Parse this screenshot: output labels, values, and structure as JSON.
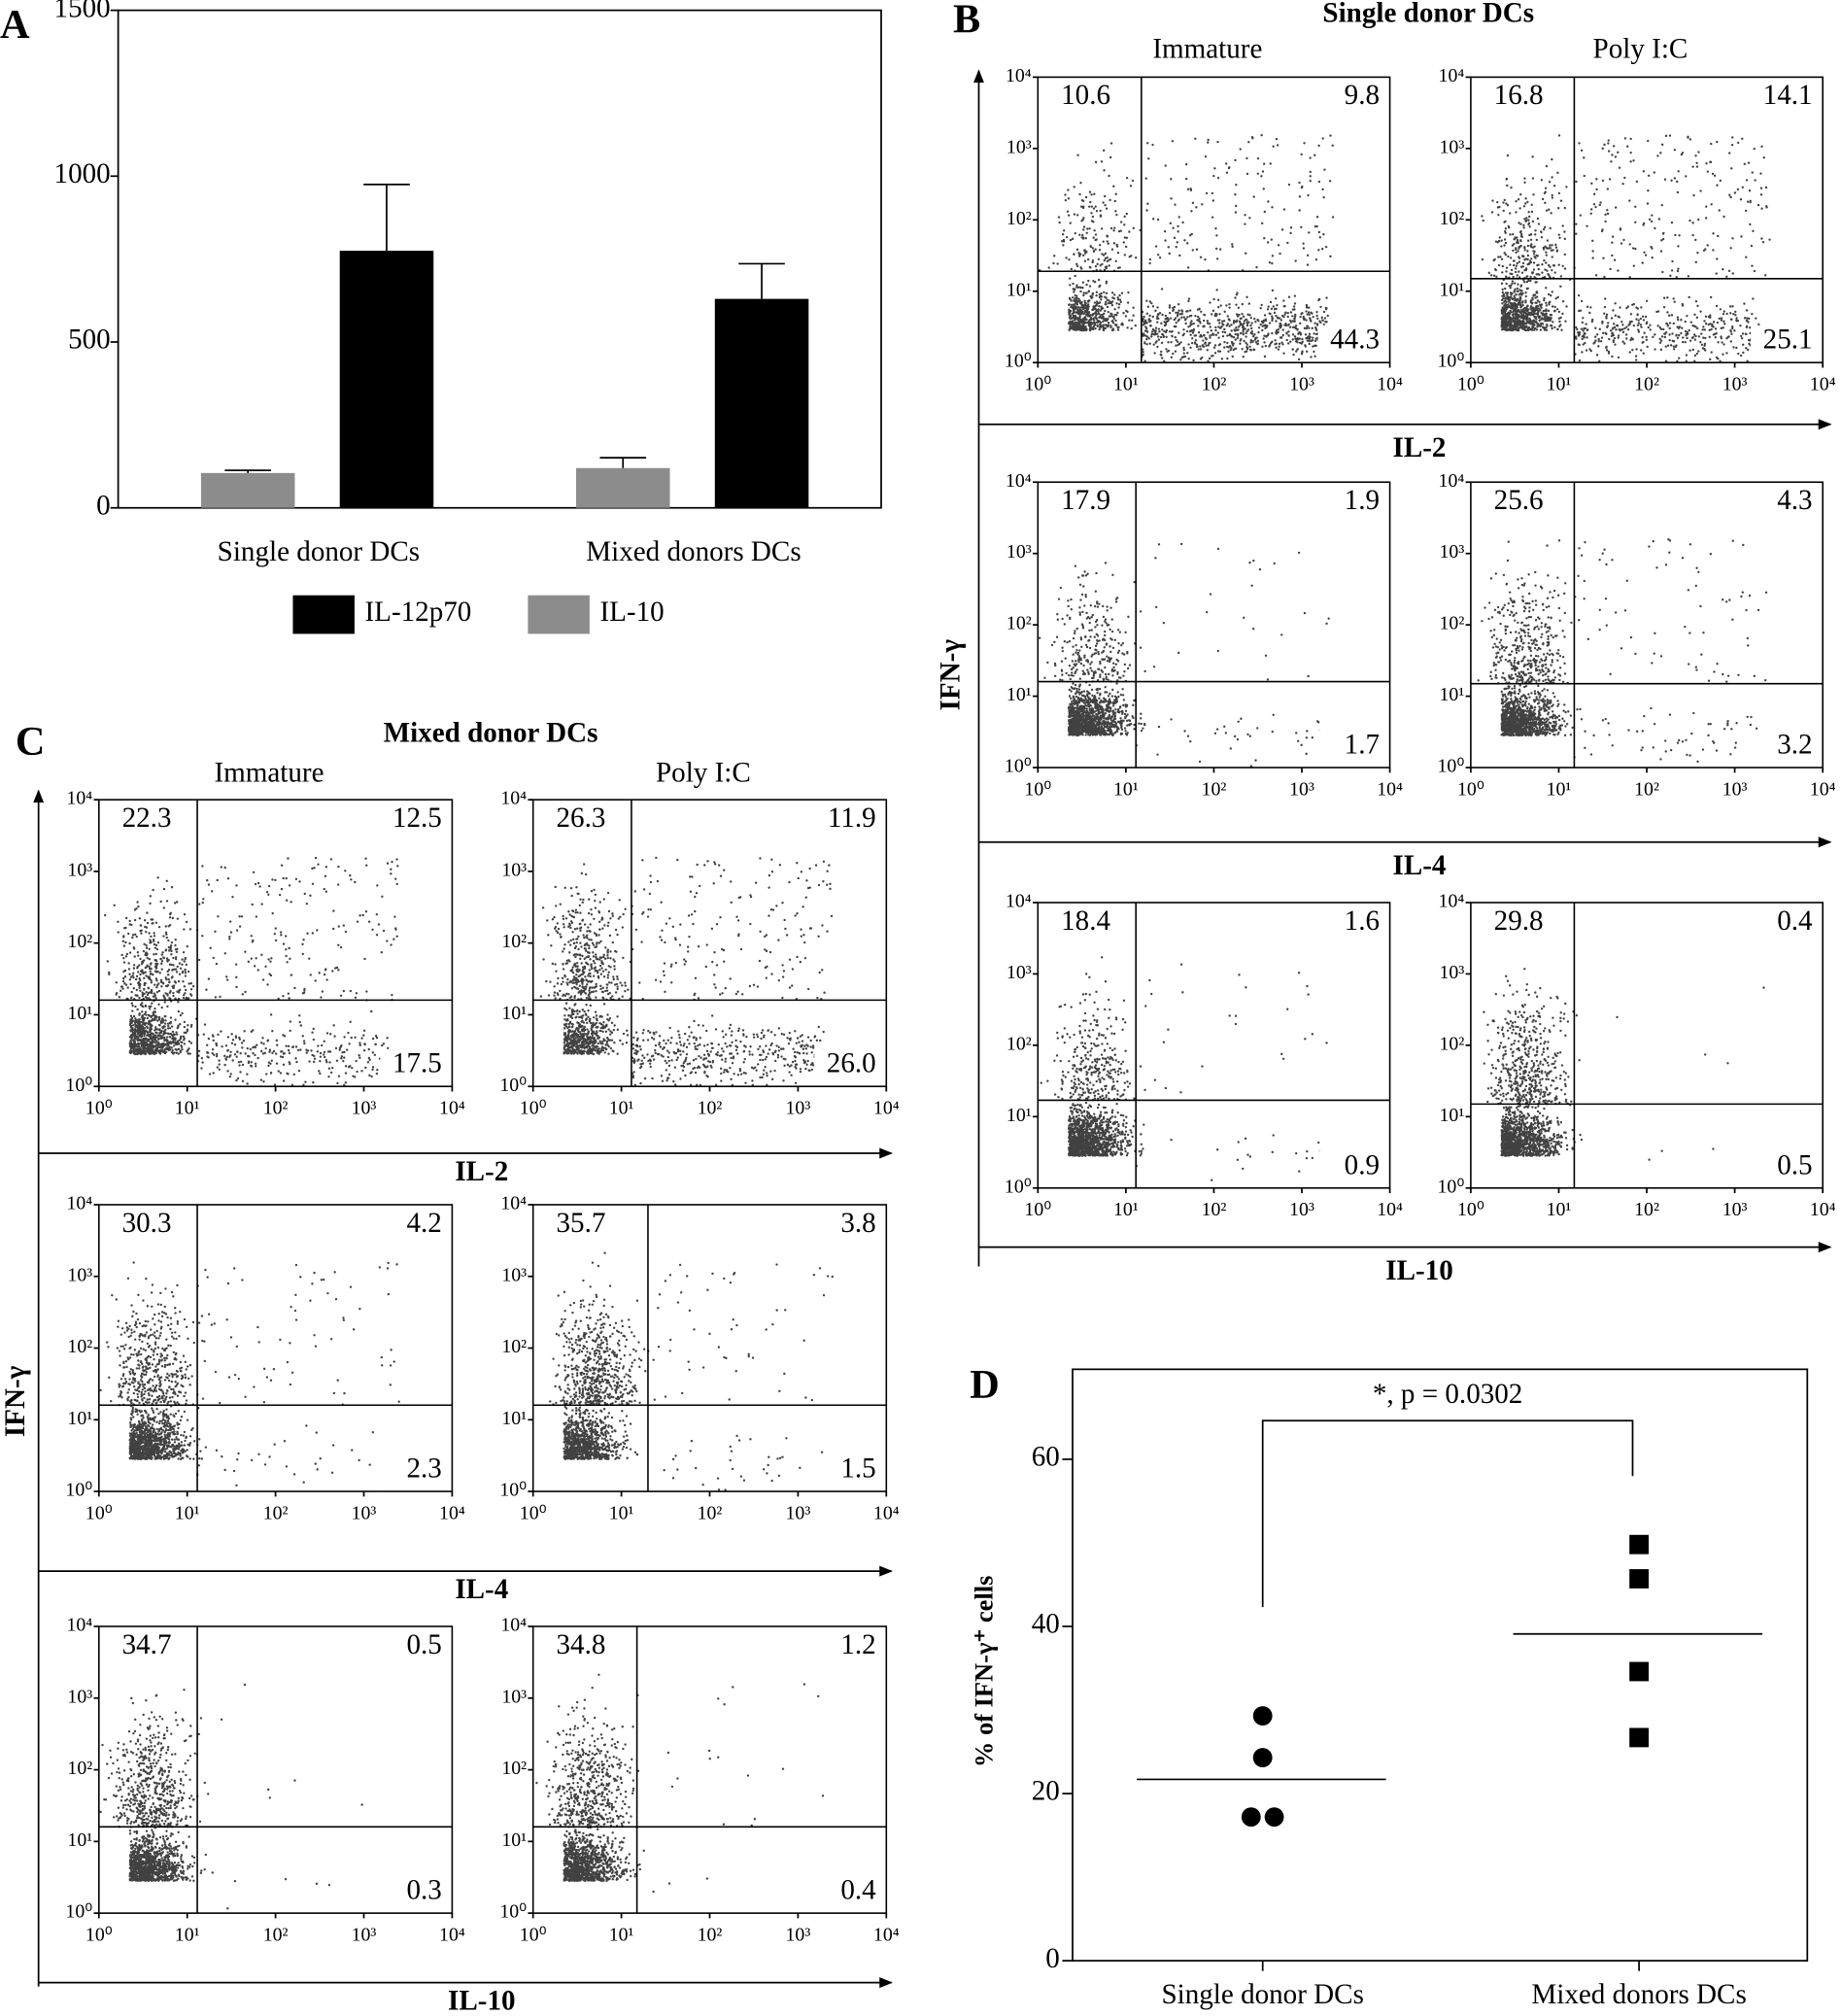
{
  "chart_data": [
    {
      "type": "bar",
      "panel_label": "A",
      "categories": [
        "Single donor DCs",
        "Mixed donors DCs"
      ],
      "series": [
        {
          "name": "IL-12p70",
          "color": "#000000",
          "values": [
            775,
            630
          ],
          "errors": [
            200,
            106
          ]
        },
        {
          "name": "IL-10",
          "color": "#8c8c8c",
          "values": [
            105,
            120
          ],
          "errors": [
            8,
            31
          ]
        }
      ],
      "ylim": [
        0,
        1500
      ],
      "yticks": [
        0,
        500,
        1000,
        1500
      ],
      "legend": "bottom"
    },
    {
      "type": "flow",
      "panel_label": "B",
      "title": "Single donor DCs",
      "columns": [
        "Immature",
        "Poly I:C"
      ],
      "y_label": "IFN-γ",
      "xlim": [
        1,
        10000
      ],
      "ylim": [
        1,
        10000
      ],
      "log_scale": true,
      "xticks": [
        {
          "value": 1,
          "label": "10⁰"
        },
        {
          "value": 10,
          "label": "10¹"
        },
        {
          "value": 100,
          "label": "10²"
        },
        {
          "value": 1000,
          "label": "10³"
        },
        {
          "value": 10000,
          "label": "10⁴"
        }
      ],
      "yticks": [
        {
          "value": 1,
          "label": "10⁰"
        },
        {
          "value": 10,
          "label": "10¹"
        },
        {
          "value": 100,
          "label": "10²"
        },
        {
          "value": 1000,
          "label": "10³"
        },
        {
          "value": 10000,
          "label": "10⁴"
        }
      ],
      "rows": [
        {
          "x_label": "IL-2",
          "plots": [
            {
              "values": [
                10.6,
                9.8,
                44.3
              ],
              "gate": [
                15,
                19
              ]
            },
            {
              "values": [
                16.8,
                14.1,
                25.1
              ],
              "gate": [
                15,
                15
              ]
            }
          ]
        },
        {
          "x_label": "IL-4",
          "plots": [
            {
              "values": [
                17.9,
                1.9,
                1.7
              ],
              "gate": [
                13,
                16
              ]
            },
            {
              "values": [
                25.6,
                4.3,
                3.2
              ],
              "gate": [
                15,
                15
              ]
            }
          ]
        },
        {
          "x_label": "IL-10",
          "plots": [
            {
              "values": [
                18.4,
                1.6,
                0.9
              ],
              "gate": [
                13,
                17
              ]
            },
            {
              "values": [
                29.8,
                0.4,
                0.5
              ],
              "gate": [
                15,
                15
              ]
            }
          ]
        }
      ]
    },
    {
      "type": "flow",
      "panel_label": "C",
      "title": "Mixed donor DCs",
      "columns": [
        "Immature",
        "Poly I:C"
      ],
      "y_label": "IFN-γ",
      "xlim": [
        1,
        10000
      ],
      "ylim": [
        1,
        10000
      ],
      "log_scale": true,
      "xticks": [
        {
          "value": 1,
          "label": "10⁰"
        },
        {
          "value": 10,
          "label": "10¹"
        },
        {
          "value": 100,
          "label": "10²"
        },
        {
          "value": 1000,
          "label": "10³"
        },
        {
          "value": 10000,
          "label": "10⁴"
        }
      ],
      "yticks": [
        {
          "value": 1,
          "label": "10⁰"
        },
        {
          "value": 10,
          "label": "10¹"
        },
        {
          "value": 100,
          "label": "10²"
        },
        {
          "value": 1000,
          "label": "10³"
        },
        {
          "value": 10000,
          "label": "10⁴"
        }
      ],
      "rows": [
        {
          "x_label": "IL-2",
          "plots": [
            {
              "values": [
                22.3,
                12.5,
                17.5
              ],
              "gate": [
                13,
                16
              ]
            },
            {
              "values": [
                26.3,
                11.9,
                26
              ],
              "value_labels": [
                "26.3",
                "11.9",
                "26.0"
              ],
              "gate": [
                13,
                16
              ]
            }
          ]
        },
        {
          "x_label": "IL-4",
          "plots": [
            {
              "values": [
                30.3,
                4.2,
                2.3
              ],
              "gate": [
                13,
                16
              ]
            },
            {
              "values": [
                35.7,
                3.8,
                1.5
              ],
              "gate": [
                20,
                16
              ]
            }
          ]
        },
        {
          "x_label": "IL-10",
          "plots": [
            {
              "values": [
                34.7,
                0.5,
                0.3
              ],
              "gate": [
                13,
                16
              ]
            },
            {
              "values": [
                34.8,
                1.2,
                0.4
              ],
              "gate": [
                15,
                16
              ]
            }
          ]
        }
      ]
    },
    {
      "type": "dot",
      "panel_label": "D",
      "categories": [
        "Single donor DCs",
        "Mixed donors DCs"
      ],
      "groups": [
        {
          "values": [
            29.3,
            24.3,
            17.2,
            17.2
          ],
          "mean": 21.7,
          "marker": "circle"
        },
        {
          "values": [
            49.8,
            45.7,
            34.6,
            26.7
          ],
          "mean": 39.1,
          "marker": "square"
        }
      ],
      "ylim": [
        0,
        70
      ],
      "yticks": [
        0,
        20,
        40,
        60
      ],
      "y_label": "% of IFN-γ⁺ cells",
      "annotation": "*, p = 0.0302"
    }
  ]
}
